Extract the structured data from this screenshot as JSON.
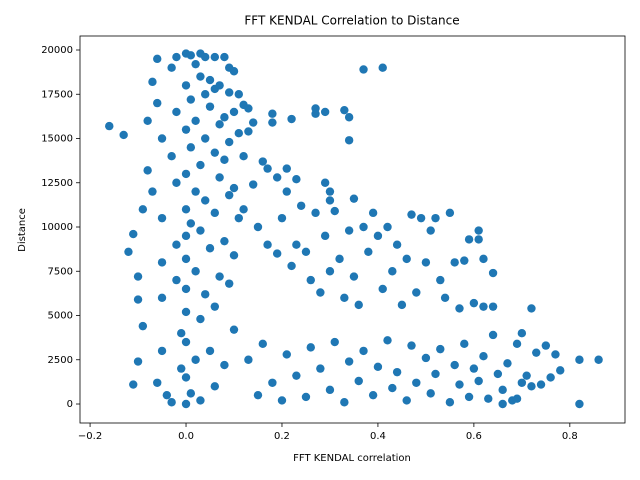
{
  "chart_data": {
    "type": "scatter",
    "title": "FFT KENDAL Correlation to Distance",
    "x_label": "FFT KENDAL correlation",
    "y_label": "Distance",
    "color": "#1f77b4",
    "xlim": [
      -0.221,
      0.915
    ],
    "ylim": [
      -1073,
      20791
    ],
    "xticks": [
      {
        "value": -0.2,
        "label": "−0.2"
      },
      {
        "value": 0,
        "label": "0.0"
      },
      {
        "value": 0.2,
        "label": "0.2"
      },
      {
        "value": 0.4,
        "label": "0.4"
      },
      {
        "value": 0.6,
        "label": "0.6"
      },
      {
        "value": 0.8,
        "label": "0.8"
      }
    ],
    "yticks": [
      0,
      2500,
      5000,
      7500,
      10000,
      12500,
      15000,
      17500,
      20000
    ],
    "x": [
      -0.16,
      -0.13,
      -0.11,
      -0.12,
      -0.1,
      -0.1,
      -0.1,
      -0.11,
      -0.09,
      -0.09,
      -0.08,
      -0.08,
      -0.07,
      -0.07,
      -0.06,
      -0.06,
      -0.05,
      -0.05,
      -0.05,
      -0.05,
      -0.05,
      -0.06,
      -0.04,
      -0.03,
      -0.03,
      -0.03,
      -0.02,
      -0.02,
      -0.02,
      -0.02,
      -0.02,
      -0.01,
      -0.01,
      0,
      0,
      0,
      0,
      0,
      0,
      0,
      0,
      0,
      0,
      0,
      0,
      0.01,
      0.01,
      0.01,
      0.01,
      0.01,
      0.02,
      0.02,
      0.02,
      0.02,
      0.02,
      0.03,
      0.03,
      0.03,
      0.03,
      0.03,
      0.03,
      0.04,
      0.04,
      0.04,
      0.04,
      0.04,
      0.05,
      0.05,
      0.05,
      0.05,
      0.06,
      0.06,
      0.06,
      0.06,
      0.06,
      0.06,
      0.07,
      0.07,
      0.07,
      0.07,
      0.08,
      0.08,
      0.08,
      0.08,
      0.08,
      0.09,
      0.09,
      0.09,
      0.09,
      0.09,
      0.1,
      0.1,
      0.1,
      0.1,
      0.1,
      0.11,
      0.11,
      0.11,
      0.12,
      0.12,
      0.12,
      0.13,
      0.13,
      0.14,
      0.14,
      0.16,
      0.17,
      0.18,
      0.18,
      0.19,
      0.21,
      0.21,
      0.22,
      0.23,
      0.24,
      0.27,
      0.27,
      0.29,
      0.29,
      0.3,
      0.3,
      0.33,
      0.34,
      0.34,
      0.35,
      0.37,
      0.41,
      0.15,
      0.17,
      0.19,
      0.2,
      0.22,
      0.23,
      0.25,
      0.26,
      0.27,
      0.28,
      0.29,
      0.3,
      0.31,
      0.32,
      0.33,
      0.34,
      0.35,
      0.36,
      0.37,
      0.38,
      0.39,
      0.4,
      0.41,
      0.42,
      0.43,
      0.44,
      0.45,
      0.46,
      0.47,
      0.48,
      0.49,
      0.5,
      0.51,
      0.52,
      0.53,
      0.54,
      0.55,
      0.56,
      0.57,
      0.58,
      0.59,
      0.61,
      0.61,
      0.62,
      0.62,
      0.64,
      0.64,
      0.6,
      0.13,
      0.15,
      0.16,
      0.18,
      0.2,
      0.21,
      0.23,
      0.25,
      0.26,
      0.28,
      0.3,
      0.31,
      0.33,
      0.34,
      0.36,
      0.37,
      0.39,
      0.4,
      0.42,
      0.43,
      0.44,
      0.46,
      0.47,
      0.48,
      0.5,
      0.51,
      0.52,
      0.53,
      0.55,
      0.56,
      0.57,
      0.58,
      0.59,
      0.6,
      0.61,
      0.62,
      0.63,
      0.64,
      0.65,
      0.66,
      0.67,
      0.68,
      0.69,
      0.7,
      0.7,
      0.71,
      0.72,
      0.72,
      0.73,
      0.74,
      0.75,
      0.76,
      0.77,
      0.78,
      0.82,
      0.82,
      0.86,
      0.69,
      0.66
    ],
    "values": [
      15700,
      15200,
      9600,
      8600,
      7200,
      5900,
      2400,
      1100,
      4400,
      11000,
      16000,
      13200,
      12000,
      18200,
      19500,
      17000,
      15000,
      10500,
      8000,
      6000,
      3000,
      1200,
      500,
      100,
      14000,
      19000,
      19600,
      16500,
      12500,
      9000,
      7000,
      4000,
      2000,
      0,
      19800,
      18000,
      15500,
      13000,
      11000,
      9500,
      8200,
      6500,
      5200,
      3500,
      1500,
      19700,
      17200,
      14500,
      10200,
      600,
      19200,
      16000,
      12000,
      7500,
      2500,
      19800,
      18500,
      13500,
      9800,
      4800,
      200,
      19600,
      17500,
      15000,
      11500,
      6200,
      18300,
      16800,
      8800,
      3000,
      19600,
      17800,
      14200,
      10800,
      5500,
      1000,
      18000,
      15800,
      12800,
      7200,
      19600,
      16200,
      13800,
      9200,
      2200,
      19000,
      17600,
      14800,
      11800,
      6800,
      18800,
      16500,
      12200,
      8400,
      4200,
      17500,
      15300,
      10500,
      16900,
      14000,
      11000,
      16700,
      15400,
      12400,
      15900,
      13700,
      13300,
      16400,
      15900,
      12800,
      12000,
      13300,
      16100,
      12700,
      11200,
      16700,
      16400,
      16500,
      12500,
      12000,
      11500,
      16600,
      16200,
      14900,
      11600,
      18900,
      19000,
      10000,
      9000,
      8500,
      10500,
      7800,
      9000,
      8600,
      7000,
      10800,
      6300,
      9500,
      7500,
      10900,
      8200,
      6000,
      9800,
      7200,
      5600,
      10000,
      8600,
      10800,
      9500,
      6500,
      10000,
      7500,
      9000,
      5600,
      8200,
      10700,
      6300,
      10500,
      8000,
      9800,
      10500,
      7000,
      6000,
      10800,
      8000,
      5400,
      8100,
      9300,
      9300,
      9800,
      8200,
      5500,
      7400,
      5500,
      5700,
      2500,
      500,
      3400,
      1200,
      200,
      2800,
      1600,
      400,
      3200,
      2000,
      800,
      3500,
      100,
      2400,
      1300,
      3000,
      500,
      2100,
      3600,
      900,
      1800,
      200,
      3300,
      1200,
      2600,
      600,
      1700,
      3100,
      100,
      2200,
      1100,
      3400,
      400,
      2000,
      1300,
      2700,
      300,
      3900,
      1700,
      800,
      2300,
      200,
      3400,
      4000,
      1200,
      1600,
      5400,
      1000,
      2900,
      1100,
      3300,
      1500,
      2800,
      1900,
      2500,
      0,
      2500,
      300,
      0
    ]
  }
}
